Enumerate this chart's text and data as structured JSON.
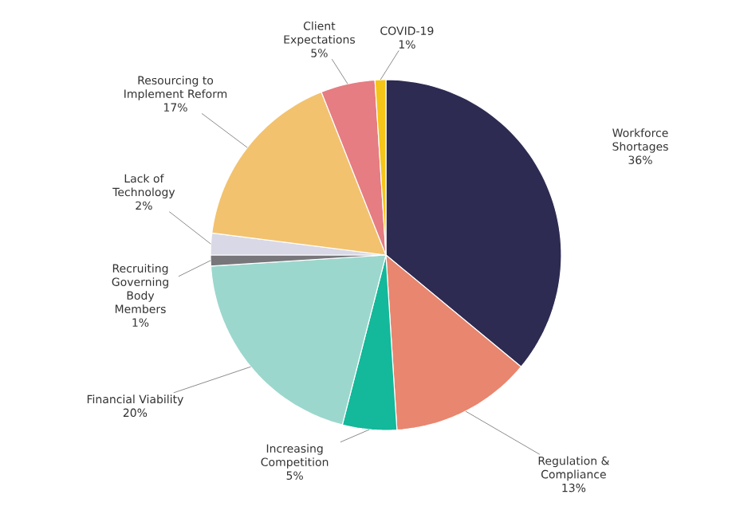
{
  "chart_data": {
    "type": "pie",
    "categories": [
      "Workforce Shortages",
      "Regulation & Compliance",
      "Increasing Competition",
      "Financial Viability",
      "Recruiting Governing Body Members",
      "Lack of Technology",
      "Resourcing to Implement Reform",
      "Client Expectations",
      "COVID-19"
    ],
    "values": [
      36,
      13,
      5,
      20,
      1,
      2,
      17,
      5,
      1
    ],
    "value_labels": [
      "36%",
      "13%",
      "5%",
      "20%",
      "1%",
      "2%",
      "17%",
      "5%",
      "1%"
    ],
    "colors": [
      "#2d2b52",
      "#e8866f",
      "#14b89a",
      "#9bd7cd",
      "#77767a",
      "#d9d8e6",
      "#f2c26e",
      "#e57d82",
      "#f5c518"
    ]
  }
}
